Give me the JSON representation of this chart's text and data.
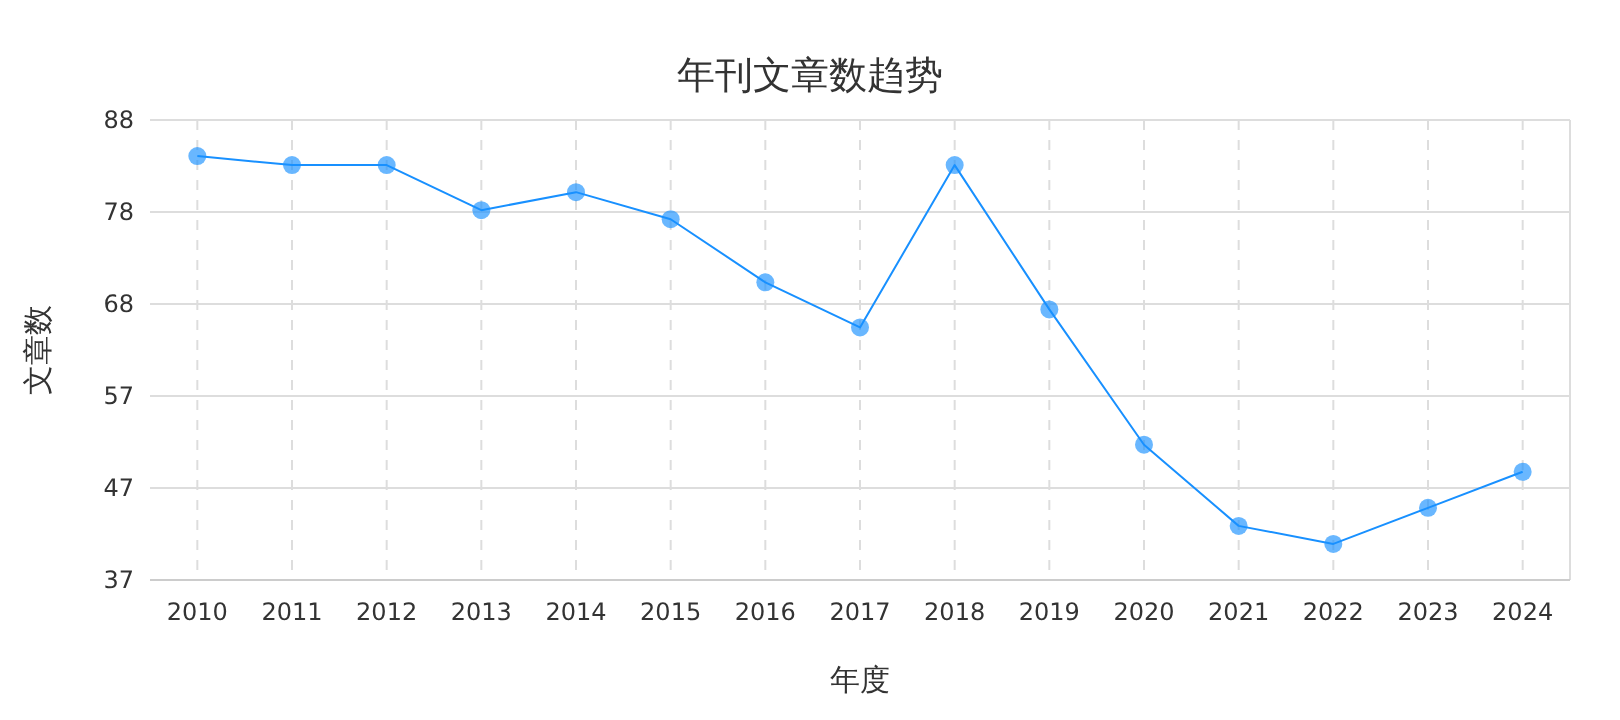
{
  "chart_data": {
    "type": "line",
    "title": "年刊文章数趋势",
    "xlabel": "年度",
    "ylabel": "文章数",
    "categories": [
      "2010",
      "2011",
      "2012",
      "2013",
      "2014",
      "2015",
      "2016",
      "2017",
      "2018",
      "2019",
      "2020",
      "2021",
      "2022",
      "2023",
      "2024"
    ],
    "series": [
      {
        "color": "#1890ff",
        "values": [
          84,
          83,
          83,
          78,
          80,
          77,
          70,
          65,
          83,
          67,
          52,
          43,
          41,
          45,
          49
        ]
      }
    ],
    "ylim": [
      37,
      88
    ],
    "yticks": [
      37,
      {
        "value": 47.2,
        "label": "47"
      },
      {
        "value": 57.4,
        "label": "57"
      },
      {
        "value": 67.6,
        "label": "68"
      },
      {
        "value": 77.8,
        "label": "78"
      },
      88
    ],
    "grid": true,
    "marker": "circle",
    "line_style": "solid"
  }
}
